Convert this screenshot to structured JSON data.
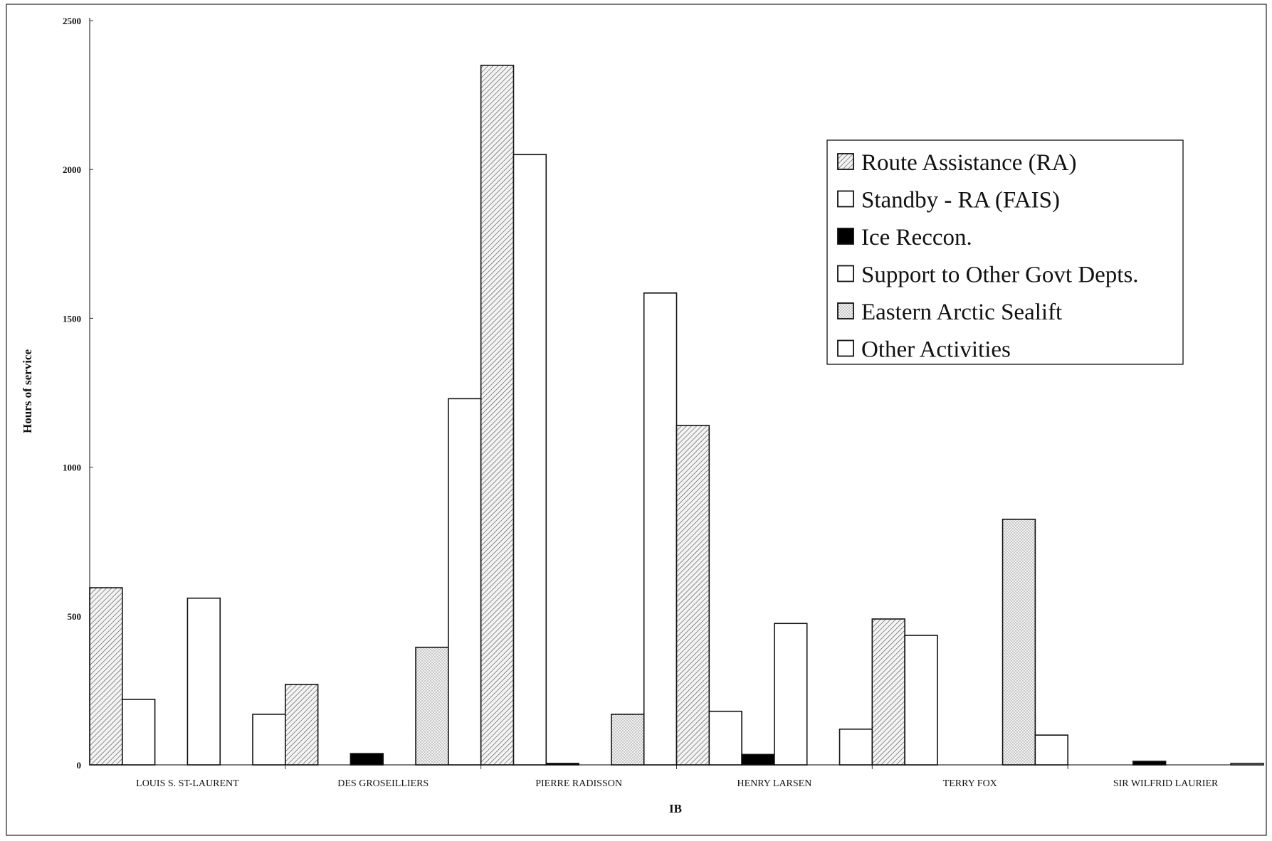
{
  "chart_data": {
    "type": "bar",
    "xlabel": "IB",
    "ylabel": "Hours of service",
    "ylim": [
      0,
      2500
    ],
    "yticks": [
      "0",
      "500",
      "1000",
      "1500",
      "2000",
      "2500"
    ],
    "categories": [
      "LOUIS S. ST-LAURENT",
      "DES GROSEILLIERS",
      "PIERRE RADISSON",
      "HENRY LARSEN",
      "TERRY FOX",
      "SIR WILFRID LAURIER"
    ],
    "series": [
      {
        "name": "Route Assistance (RA)",
        "pattern": "hatch",
        "values": [
          595,
          270,
          2350,
          1140,
          490,
          0
        ]
      },
      {
        "name": "Standby - RA (FAIS)",
        "pattern": "open",
        "values": [
          220,
          0,
          2050,
          180,
          435,
          0
        ]
      },
      {
        "name": "Ice Reccon.",
        "pattern": "solid",
        "values": [
          0,
          38,
          5,
          35,
          0,
          12
        ]
      },
      {
        "name": "Support to Other Govt Depts.",
        "pattern": "open",
        "values": [
          560,
          0,
          0,
          475,
          0,
          0
        ]
      },
      {
        "name": "Eastern Arctic Sealift",
        "pattern": "dots",
        "values": [
          0,
          395,
          170,
          0,
          825,
          0
        ]
      },
      {
        "name": "Other Activities",
        "pattern": "open",
        "values": [
          170,
          1230,
          1585,
          120,
          100,
          5
        ]
      }
    ],
    "legend_position": "top-right",
    "grid": false
  }
}
